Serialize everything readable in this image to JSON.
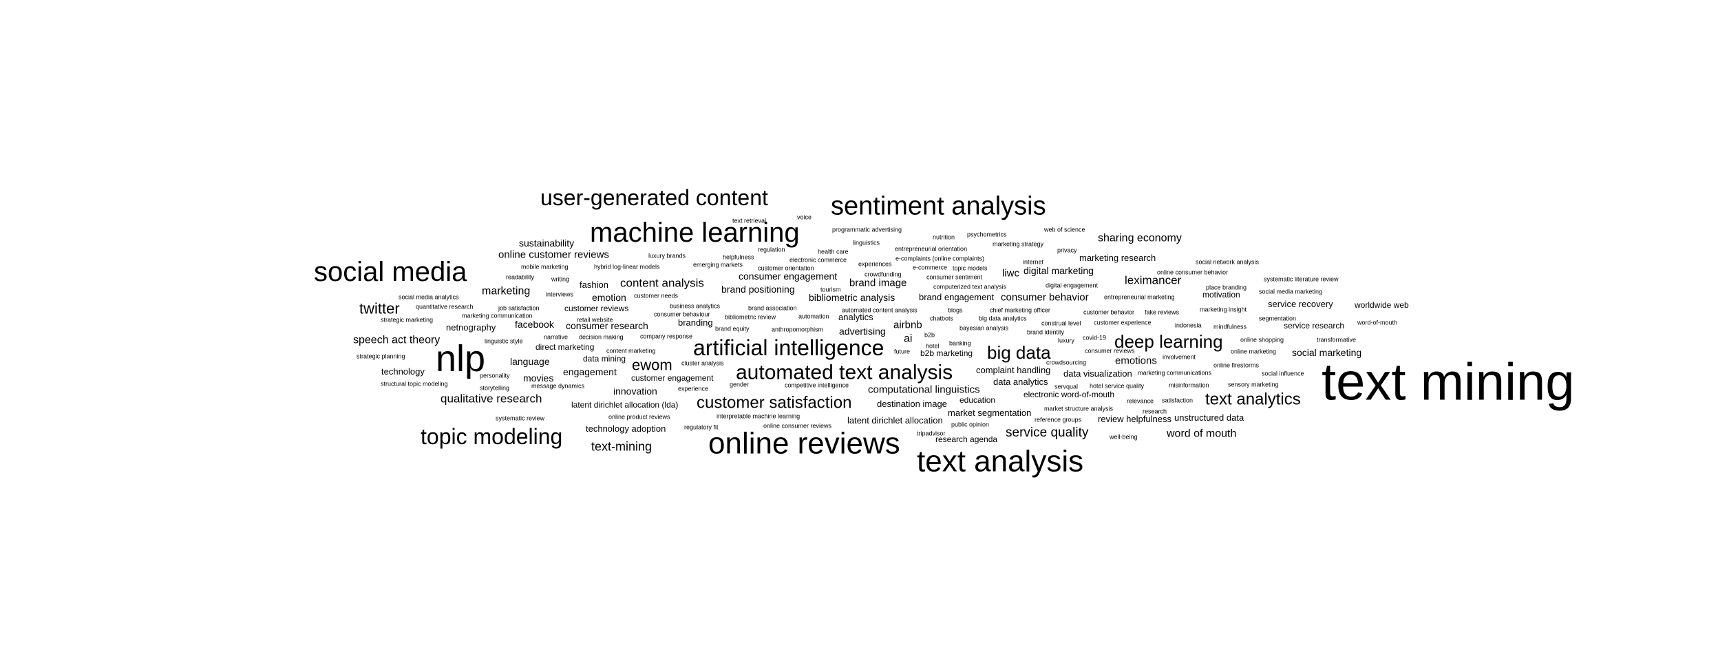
{
  "words": [
    "text mining",
    "nlp",
    "online reviews",
    "text analysis",
    "machine learning",
    "social media",
    "sentiment analysis",
    "user-generated content",
    "artificial intelligence",
    "automated text analysis",
    "topic modeling",
    "deep learning",
    "big data",
    "customer satisfaction",
    "text analytics",
    "twitter",
    "sharing economy",
    "ewom",
    "marketing",
    "text-mining",
    "speech act theory",
    "content analysis",
    "service quality",
    "qualitative research",
    "leximancer",
    "customer reviews",
    "consumer behavior",
    "online customer reviews",
    "word of mouth",
    "facebook",
    "consumer research",
    "sustainability",
    "consumer engagement",
    "brand image",
    "computational linguistics",
    "digital marketing",
    "emotions",
    "analytics",
    "bibliometric analysis",
    "engagement",
    "brand positioning",
    "brand engagement",
    "language",
    "emotion",
    "advertising",
    "liwc",
    "airbnb",
    "ai",
    "netnography",
    "social marketing",
    "innovation",
    "movies",
    "technology",
    "marketing research",
    "fashion",
    "branding",
    "destination image",
    "service recovery",
    "direct marketing",
    "latent dirichlet allocation",
    "latent dirichlet allocation (lda)",
    "technology adoption",
    "customer engagement",
    "data mining",
    "data visualization",
    "data analytics",
    "complaint handling",
    "market segmentation",
    "education",
    "unstructured data",
    "review helpfulness",
    "research agenda",
    "motivation",
    "b2b marketing",
    "worldwide web",
    "service research",
    "customer needs",
    "electronic word-of-mouth",
    "covid-19",
    "strategic planning",
    "structural topic modeling",
    "storytelling",
    "personality",
    "message dynamics",
    "gender",
    "experience",
    "competitive intelligence",
    "interpretable machine learning",
    "online product reviews",
    "systematic review",
    "regulatory fit",
    "online consumer reviews",
    "public opinion",
    "tripadvisor",
    "future",
    "banking",
    "hotel",
    "b2b",
    "bayesian analysis",
    "chief marketing officer",
    "blogs",
    "chatbots",
    "big data analytics",
    "construal level",
    "customer experience",
    "indonesia",
    "mindfulness",
    "marketing insight",
    "segmentation",
    "word-of-mouth",
    "online shopping",
    "transformative",
    "online marketing",
    "consumer reviews",
    "crowdsourcing",
    "luxury",
    "brand identity",
    "involvement",
    "online firestorms",
    "marketing communications",
    "social influence",
    "sensory marketing",
    "misinformation",
    "servqual",
    "hotel service quality",
    "research",
    "relevance",
    "satisfaction",
    "market structure analysis",
    "reference groups",
    "well-being",
    "regulation",
    "health care",
    "linguistics",
    "programmatic advertising",
    "text retrieval",
    "voice",
    "nutrition",
    "psychometrics",
    "marketing strategy",
    "web of science",
    "privacy",
    "entrepreneurial orientation",
    "e-complaints (online complaints)",
    "electronic commerce",
    "experiences",
    "luxury brands",
    "helpfulness",
    "hybrid log-linear models",
    "emerging markets",
    "customer orientation",
    "crowdfunding",
    "e-commerce",
    "topic models",
    "consumer sentiment",
    "internet",
    "mobile marketing",
    "readability",
    "writing",
    "interviews",
    "tourism",
    "computerized text analysis",
    "digital engagement",
    "customer behavior",
    "fake reviews",
    "entrepreneurial marketing",
    "online consumer behavior",
    "social network analysis",
    "systematic literature review",
    "place branding",
    "social media marketing",
    "social media analytics",
    "quantitative research",
    "job satisfaction",
    "business analytics",
    "brand association",
    "automated content analysis",
    "strategic marketing",
    "marketing communication",
    "retail website",
    "consumer behaviour",
    "bibliometric review",
    "automation",
    "linguistic style",
    "narrative",
    "decision making",
    "company response",
    "brand equity",
    "anthropomorphism",
    "content marketing",
    "cluster analysis"
  ]
}
